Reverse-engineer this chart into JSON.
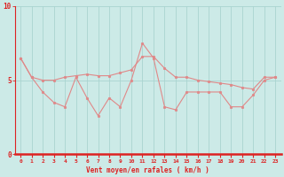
{
  "xlabel": "Vent moyen/en rafales ( km/h )",
  "bg_color": "#cceae7",
  "line_color": "#e08888",
  "grid_color": "#aad4d0",
  "axis_color": "#dd2222",
  "text_color": "#dd2222",
  "ylim": [
    0,
    10
  ],
  "xlim": [
    -0.5,
    23.5
  ],
  "yticks": [
    0,
    5,
    10
  ],
  "xticks": [
    0,
    1,
    2,
    3,
    4,
    5,
    6,
    7,
    8,
    9,
    10,
    11,
    12,
    13,
    14,
    15,
    16,
    17,
    18,
    19,
    20,
    21,
    22,
    23
  ],
  "wind_upper": [
    6.5,
    5.2,
    5.0,
    5.0,
    5.2,
    5.3,
    5.4,
    5.3,
    5.3,
    5.5,
    5.7,
    6.6,
    6.6,
    5.8,
    5.2,
    5.2,
    5.0,
    4.9,
    4.8,
    4.7,
    4.5,
    4.4,
    5.2,
    5.2
  ],
  "wind_lower": [
    6.5,
    5.2,
    4.2,
    3.5,
    3.2,
    5.2,
    3.8,
    2.6,
    3.8,
    3.2,
    5.0,
    7.5,
    6.5,
    3.2,
    3.0,
    4.2,
    4.2,
    4.2,
    4.2,
    3.2,
    3.2,
    4.0,
    5.0,
    5.2
  ]
}
